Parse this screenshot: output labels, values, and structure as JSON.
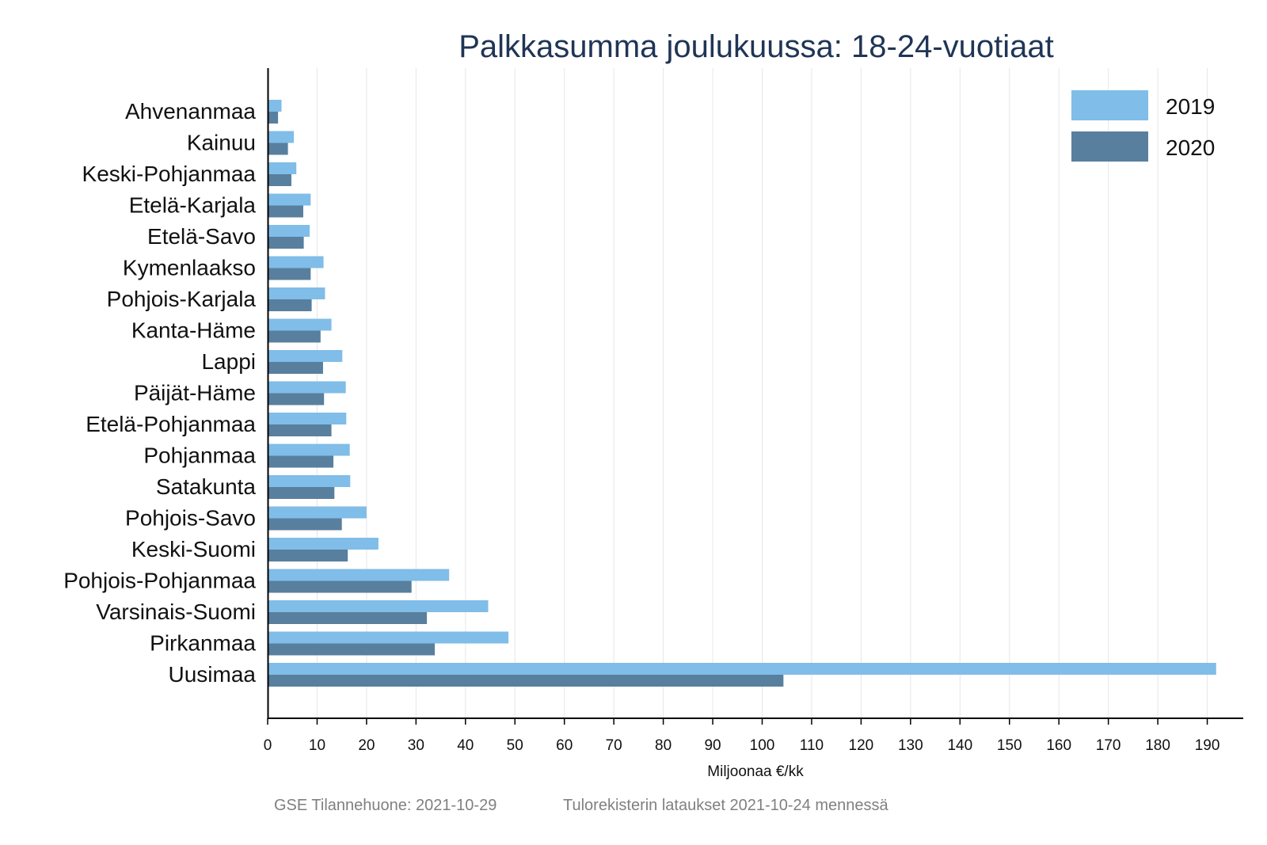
{
  "chart_data": {
    "type": "bar",
    "orientation": "horizontal",
    "title": "Palkkasumma joulukuussa: 18-24-vuotiaat",
    "xlabel": "Miljoonaa €/kk",
    "ylabel": "",
    "xlim": [
      0,
      197
    ],
    "xticks": [
      0,
      10,
      20,
      30,
      40,
      50,
      60,
      70,
      80,
      90,
      100,
      110,
      120,
      130,
      140,
      150,
      160,
      170,
      180,
      190
    ],
    "grid": "vertical",
    "legend_position": "top-right",
    "categories": [
      "Ahvenanmaa",
      "Kainuu",
      "Keski-Pohjanmaa",
      "Etelä-Karjala",
      "Etelä-Savo",
      "Kymenlaakso",
      "Pohjois-Karjala",
      "Kanta-Häme",
      "Lappi",
      "Päijät-Häme",
      "Etelä-Pohjanmaa",
      "Pohjanmaa",
      "Satakunta",
      "Pohjois-Savo",
      "Keski-Suomi",
      "Pohjois-Pohjanmaa",
      "Varsinais-Suomi",
      "Pirkanmaa",
      "Uusimaa"
    ],
    "series": [
      {
        "name": "2019",
        "color": "#80bde8",
        "values": [
          2.8,
          5.3,
          5.8,
          8.7,
          8.5,
          11.3,
          11.6,
          12.9,
          15.1,
          15.8,
          15.9,
          16.6,
          16.7,
          20.0,
          22.4,
          36.7,
          44.6,
          48.7,
          191.8
        ]
      },
      {
        "name": "2020",
        "color": "#587f9e",
        "values": [
          2.1,
          4.1,
          4.8,
          7.2,
          7.3,
          8.7,
          8.9,
          10.7,
          11.2,
          11.4,
          12.9,
          13.3,
          13.5,
          15.0,
          16.2,
          29.1,
          32.2,
          33.8,
          104.3
        ]
      }
    ]
  },
  "footer": {
    "left": "GSE Tilannehuone: 2021-10-29",
    "right": "Tulorekisterin lataukset 2021-10-24 mennessä"
  }
}
